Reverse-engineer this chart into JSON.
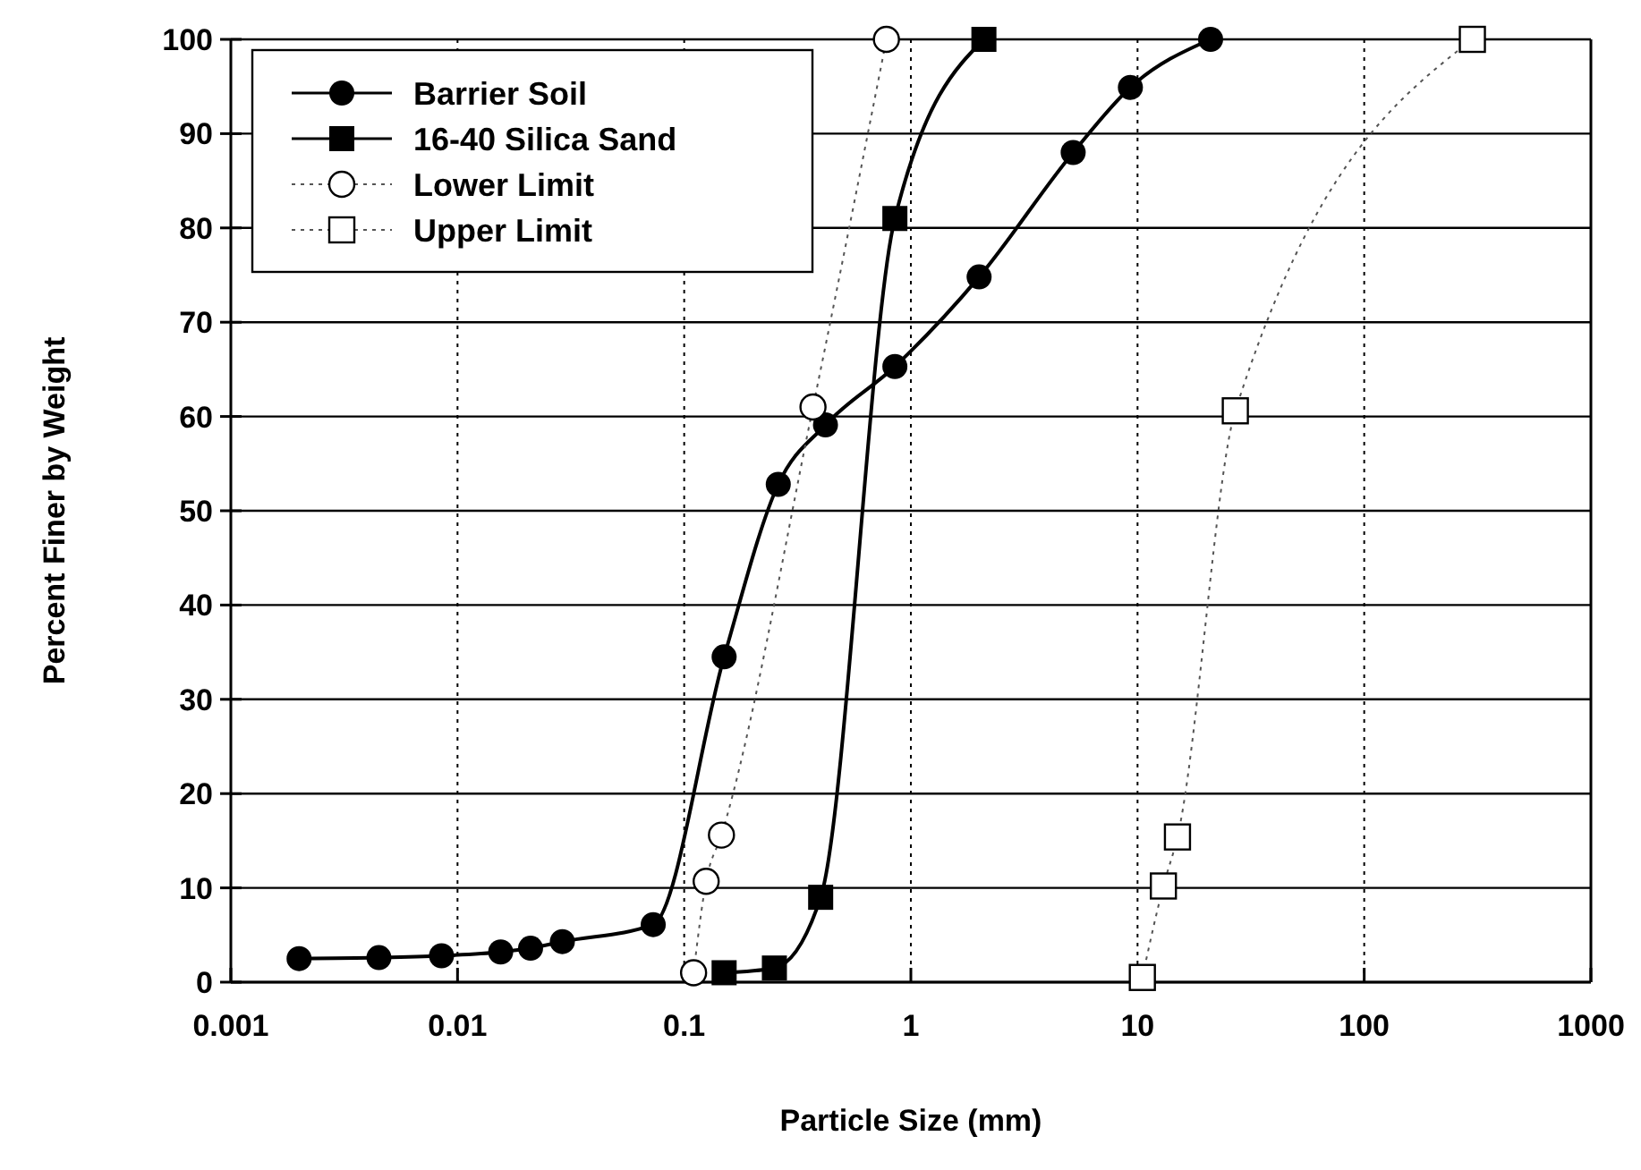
{
  "chart_data": {
    "type": "line",
    "xlabel": "Particle Size (mm)",
    "ylabel": "Percent Finer by Weight",
    "log": "x",
    "grid": true,
    "legend": "top left",
    "xlim": [
      0.001,
      1000
    ],
    "xticks": [
      0.001,
      0.01,
      0.1,
      1,
      10,
      100,
      1000
    ],
    "ylim": [
      0,
      100
    ],
    "yticks": [
      0,
      10,
      20,
      30,
      40,
      50,
      60,
      70,
      80,
      90,
      100
    ],
    "series": [
      {
        "name": "Barrier Soil",
        "color": "#000000",
        "marker": "circle",
        "line_style": "solid",
        "x": [
          0.002,
          0.0045,
          0.0085,
          0.0155,
          0.021,
          0.029,
          0.073,
          0.15,
          0.26,
          0.42,
          0.85,
          2.0,
          5.2,
          9.3,
          21
        ],
        "values": [
          2.5,
          2.6,
          2.8,
          3.2,
          3.6,
          4.3,
          6.1,
          34.5,
          52.8,
          59.1,
          65.3,
          74.8,
          88,
          94.9,
          100
        ]
      },
      {
        "name": "16-40 Silica Sand",
        "color": "#000000",
        "marker": "square",
        "line_style": "solid",
        "x": [
          0.15,
          0.25,
          0.4,
          0.85,
          2.1
        ],
        "values": [
          1,
          1.5,
          9,
          81,
          100
        ]
      },
      {
        "name": "Lower Limit",
        "color": "#000000",
        "marker": "circle",
        "line_style": "dotted",
        "x": [
          0.11,
          0.125,
          0.146,
          0.37,
          0.78
        ],
        "values": [
          1,
          10.7,
          15.6,
          61,
          100
        ]
      },
      {
        "name": "Upper Limit",
        "color": "#000000",
        "marker": "square",
        "line_style": "dotted",
        "x": [
          10.5,
          13,
          15,
          27,
          300
        ],
        "values": [
          0.5,
          10.2,
          15.4,
          60.6,
          100
        ]
      }
    ]
  }
}
